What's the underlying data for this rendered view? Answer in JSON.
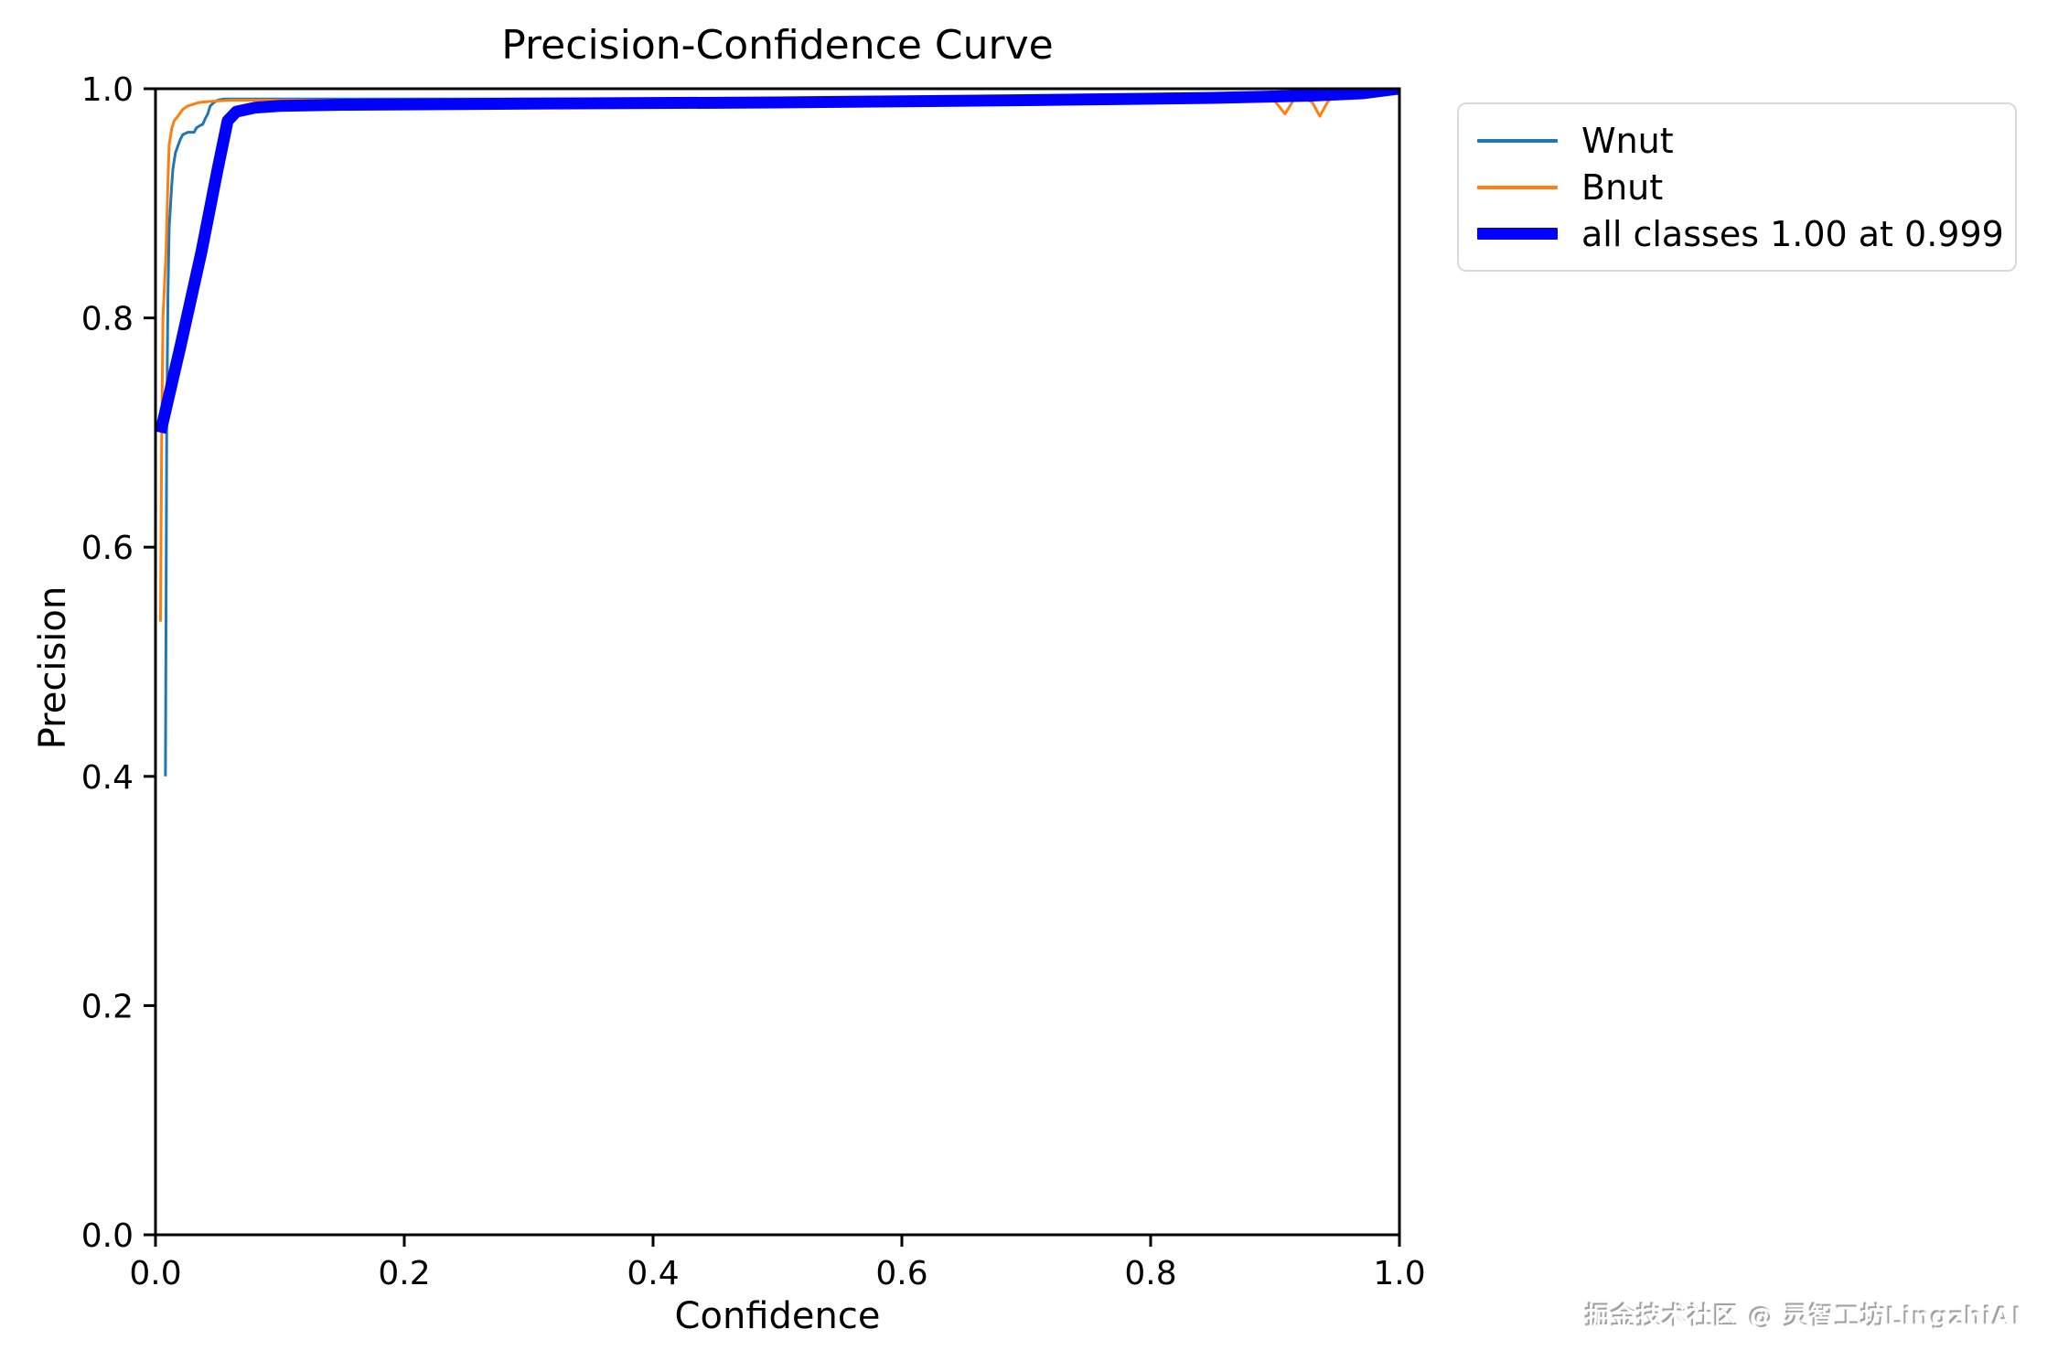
{
  "chart_data": {
    "type": "line",
    "title": "Precision-Confidence Curve",
    "xlabel": "Confidence",
    "ylabel": "Precision",
    "xlim": [
      0.0,
      1.0
    ],
    "ylim": [
      0.0,
      1.0
    ],
    "xticks": [
      0.0,
      0.2,
      0.4,
      0.6,
      0.8,
      1.0
    ],
    "xtick_labels": [
      "0.0",
      "0.2",
      "0.4",
      "0.6",
      "0.8",
      "1.0"
    ],
    "yticks": [
      0.0,
      0.2,
      0.4,
      0.6,
      0.8,
      1.0
    ],
    "ytick_labels": [
      "0.0",
      "0.2",
      "0.4",
      "0.6",
      "0.8",
      "1.0"
    ],
    "grid": false,
    "legend_position": "outside-upper-right",
    "series": [
      {
        "name": "Wnut",
        "color": "#1f77b4",
        "line_width": 3,
        "points": [
          [
            0.008,
            0.4
          ],
          [
            0.009,
            0.7
          ],
          [
            0.01,
            0.82
          ],
          [
            0.011,
            0.879
          ],
          [
            0.013,
            0.915
          ],
          [
            0.014,
            0.93
          ],
          [
            0.016,
            0.944
          ],
          [
            0.017,
            0.947
          ],
          [
            0.02,
            0.956
          ],
          [
            0.022,
            0.96
          ],
          [
            0.026,
            0.962
          ],
          [
            0.031,
            0.962
          ],
          [
            0.033,
            0.966
          ],
          [
            0.036,
            0.968
          ],
          [
            0.038,
            0.969
          ],
          [
            0.04,
            0.974
          ],
          [
            0.042,
            0.978
          ],
          [
            0.044,
            0.985
          ],
          [
            0.047,
            0.988
          ],
          [
            0.05,
            0.99
          ],
          [
            0.055,
            0.991
          ],
          [
            0.08,
            0.991
          ],
          [
            0.2,
            0.991
          ],
          [
            0.5,
            0.991
          ],
          [
            0.8,
            0.991
          ],
          [
            0.95,
            0.992
          ],
          [
            0.99,
            0.996
          ],
          [
            1.0,
            1.0
          ]
        ]
      },
      {
        "name": "Bnut",
        "color": "#ff7f0e",
        "line_width": 3,
        "points": [
          [
            0.004,
            0.535
          ],
          [
            0.005,
            0.7
          ],
          [
            0.006,
            0.8
          ],
          [
            0.0085,
            0.858
          ],
          [
            0.01,
            0.92
          ],
          [
            0.011,
            0.951
          ],
          [
            0.013,
            0.965
          ],
          [
            0.015,
            0.972
          ],
          [
            0.018,
            0.976
          ],
          [
            0.022,
            0.982
          ],
          [
            0.026,
            0.985
          ],
          [
            0.029,
            0.986
          ],
          [
            0.035,
            0.988
          ],
          [
            0.045,
            0.989
          ],
          [
            0.06,
            0.99
          ],
          [
            0.2,
            0.99
          ],
          [
            0.5,
            0.989
          ],
          [
            0.8,
            0.99
          ],
          [
            0.875,
            0.991
          ],
          [
            0.893,
            0.992
          ],
          [
            0.9,
            0.989
          ],
          [
            0.908,
            0.978
          ],
          [
            0.916,
            0.992
          ],
          [
            0.925,
            0.991
          ],
          [
            0.93,
            0.988
          ],
          [
            0.936,
            0.976
          ],
          [
            0.942,
            0.988
          ],
          [
            0.947,
            0.994
          ],
          [
            0.96,
            0.996
          ],
          [
            1.0,
            1.0
          ]
        ]
      },
      {
        "name": "all classes 1.00 at 0.999",
        "color": "#0000ff",
        "line_width": 13,
        "points": [
          [
            0.004,
            0.7
          ],
          [
            0.02,
            0.775
          ],
          [
            0.037,
            0.858
          ],
          [
            0.05,
            0.93
          ],
          [
            0.058,
            0.972
          ],
          [
            0.065,
            0.98
          ],
          [
            0.08,
            0.9835
          ],
          [
            0.1,
            0.985
          ],
          [
            0.15,
            0.986
          ],
          [
            0.3,
            0.987
          ],
          [
            0.5,
            0.988
          ],
          [
            0.7,
            0.99
          ],
          [
            0.85,
            0.992
          ],
          [
            0.93,
            0.994
          ],
          [
            0.97,
            0.996
          ],
          [
            0.999,
            1.0
          ],
          [
            1.0,
            1.0
          ]
        ]
      }
    ]
  },
  "legend": {
    "items": [
      {
        "label": "Wnut",
        "color": "#1f77b4",
        "sample_height": 4
      },
      {
        "label": "Bnut",
        "color": "#ff7f0e",
        "sample_height": 4
      },
      {
        "label": "all classes 1.00 at 0.999",
        "color": "#0000ff",
        "sample_height": 13
      }
    ]
  },
  "watermark": {
    "text": "掘金技术社区 @ 灵智工坊LingzhiAI"
  },
  "style": {
    "axis_color": "#000000",
    "background": "#ffffff",
    "tick_font_size": 36
  }
}
